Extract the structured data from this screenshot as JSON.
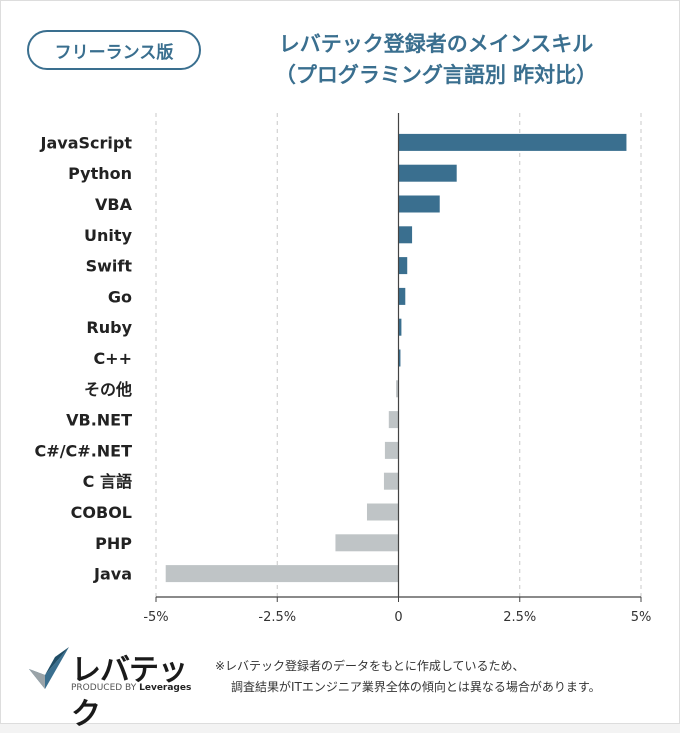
{
  "badge": "フリーランス版",
  "title_line1": "レバテック登録者のメインスキル",
  "title_line2": "（プログラミング言語別 昨対比）",
  "logo": {
    "name": "レバテック",
    "sub_prefix": "PRODUCED BY",
    "sub_brand": "Leverages",
    "icon": "checkmark-logo-icon"
  },
  "note_line1": "※レバテック登録者のデータをもとに作成しているため、",
  "note_line2": "調査結果がITエンジニア業界全体の傾向とは異なる場合があります。",
  "colors": {
    "accent": "#3a6f8f",
    "positive": "#3a6f8f",
    "negative": "#bfc4c6"
  },
  "chart_data": {
    "type": "bar",
    "orientation": "horizontal",
    "categories": [
      "JavaScript",
      "Python",
      "VBA",
      "Unity",
      "Swift",
      "Go",
      "Ruby",
      "C++",
      "その他",
      "VB.NET",
      "C#/C#.NET",
      "C 言語",
      "COBOL",
      "PHP",
      "Java"
    ],
    "values": [
      4.7,
      1.2,
      0.85,
      0.28,
      0.18,
      0.14,
      0.06,
      0.04,
      -0.05,
      -0.2,
      -0.28,
      -0.3,
      -0.65,
      -1.3,
      -4.8
    ],
    "unit": "%",
    "xlim": [
      -5,
      5
    ],
    "xticks": [
      -5,
      -2.5,
      0,
      2.5,
      5
    ],
    "xtick_labels": [
      "-5%",
      "-2.5%",
      "0",
      "2.5%",
      "5%"
    ],
    "grid": "vertical dashed"
  }
}
